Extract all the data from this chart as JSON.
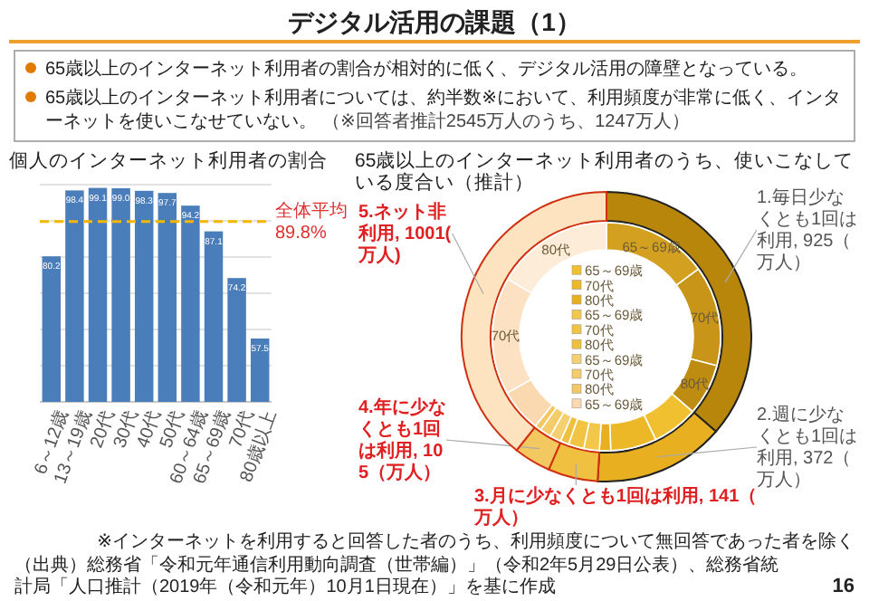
{
  "chart_data": [
    {
      "type": "other",
      "title": "デジタル活用の課題（1）",
      "annotations": [
        "65歳以上のインターネット利用者の割合が相対的に低く、デジタル活用の障壁となっている。",
        "65歳以上のインターネット利用者については、約半数※において、利用頻度が非常に低く、インターネットを使いこなせていない。",
        "（※回答者推計2545万人のうち、1247万人）",
        "（出典）総務省「令和元年通信利用動向調査（世帯編）」（令和2年5月29日公表）、総務省統計局「人口推計（2019年（令和元年）10月1日現在）」を基に作成",
        "16"
      ]
    },
    {
      "type": "bar",
      "title": "個人のインターネット利用者の割合",
      "categories": [
        "6～12歳",
        "13～19歳",
        "20代",
        "30代",
        "40代",
        "50代",
        "60～64歳",
        "65～69歳",
        "70代",
        "80歳以上"
      ],
      "values": [
        80.2,
        98.4,
        99.1,
        99.0,
        98.3,
        97.7,
        94.2,
        87.1,
        74.2,
        57.5
      ],
      "value_labels": [
        "80.2",
        "98.4",
        "99.1",
        "99.0",
        "98.3",
        "97.7",
        "94.2",
        "87.1",
        "74.2",
        "57.5"
      ],
      "color": "#4a7ebb",
      "ylim": [
        40,
        100
      ],
      "yticks": [
        {
          "value": 40,
          "label": null
        },
        {
          "value": 50,
          "label": null
        },
        {
          "value": 60,
          "label": null
        },
        {
          "value": 70,
          "label": null
        },
        {
          "value": 80,
          "label": null
        },
        {
          "value": 90,
          "label": null
        },
        {
          "value": 100,
          "label": null
        }
      ],
      "tick_labels": "x",
      "grid": "y",
      "ref_lines": [
        {
          "axis": "y",
          "value": 89.8,
          "label": "全体平均89.8%",
          "color": "#f5b800",
          "line_style": "dashed"
        }
      ]
    },
    {
      "type": "donut",
      "title": "65歳以上のインターネット利用者のうち、使いこなしている度合い（推計）",
      "categories": [
        "1.毎日少なくとも1回は利用",
        "2.週に少なくとも1回は利用",
        "3.月に少なくとも1回は利用",
        "4.年に少なくとも1回は利用",
        "5.ネット非利用"
      ],
      "values": [
        925,
        372,
        141,
        105,
        1001
      ],
      "value_labels": [
        "925（万人）",
        "372（万人）",
        "141（万人）",
        "105（万人）",
        "1001(万人)"
      ],
      "colors": [
        "#b8860b",
        "#e8b020",
        "#f0c040",
        "#f3c860",
        "#fde3c0"
      ],
      "annotations": [
        "※インターネットを利用すると回答した者のうち、利用頻度について無回答であった者を除く"
      ]
    },
    {
      "type": "donut",
      "legend": "center",
      "categories": [
        "65～69歳",
        "70代",
        "80代",
        "65～69歳",
        "70代",
        "80代",
        "65～69歳",
        "70代",
        "80代",
        "65～69歳",
        "70代",
        "80代",
        "65～69歳",
        "70代",
        "80代"
      ],
      "values": [
        14.9,
        14.2,
        7.3,
        6.5,
        6.5,
        1.6,
        2.2,
        2.2,
        1.2,
        1.6,
        1.6,
        0.9,
        6.1,
        16.6,
        16.6
      ],
      "colors": [
        "#d4a020",
        "#c99518",
        "#bf8c12",
        "#f0c030",
        "#ecb828",
        "#e8b020",
        "#f3c84a",
        "#f1c444",
        "#efc03e",
        "#f5d070",
        "#f4cc6a",
        "#f3c864",
        "#fbd9b0",
        "#fce2c2",
        "#fdecd8"
      ]
    }
  ]
}
